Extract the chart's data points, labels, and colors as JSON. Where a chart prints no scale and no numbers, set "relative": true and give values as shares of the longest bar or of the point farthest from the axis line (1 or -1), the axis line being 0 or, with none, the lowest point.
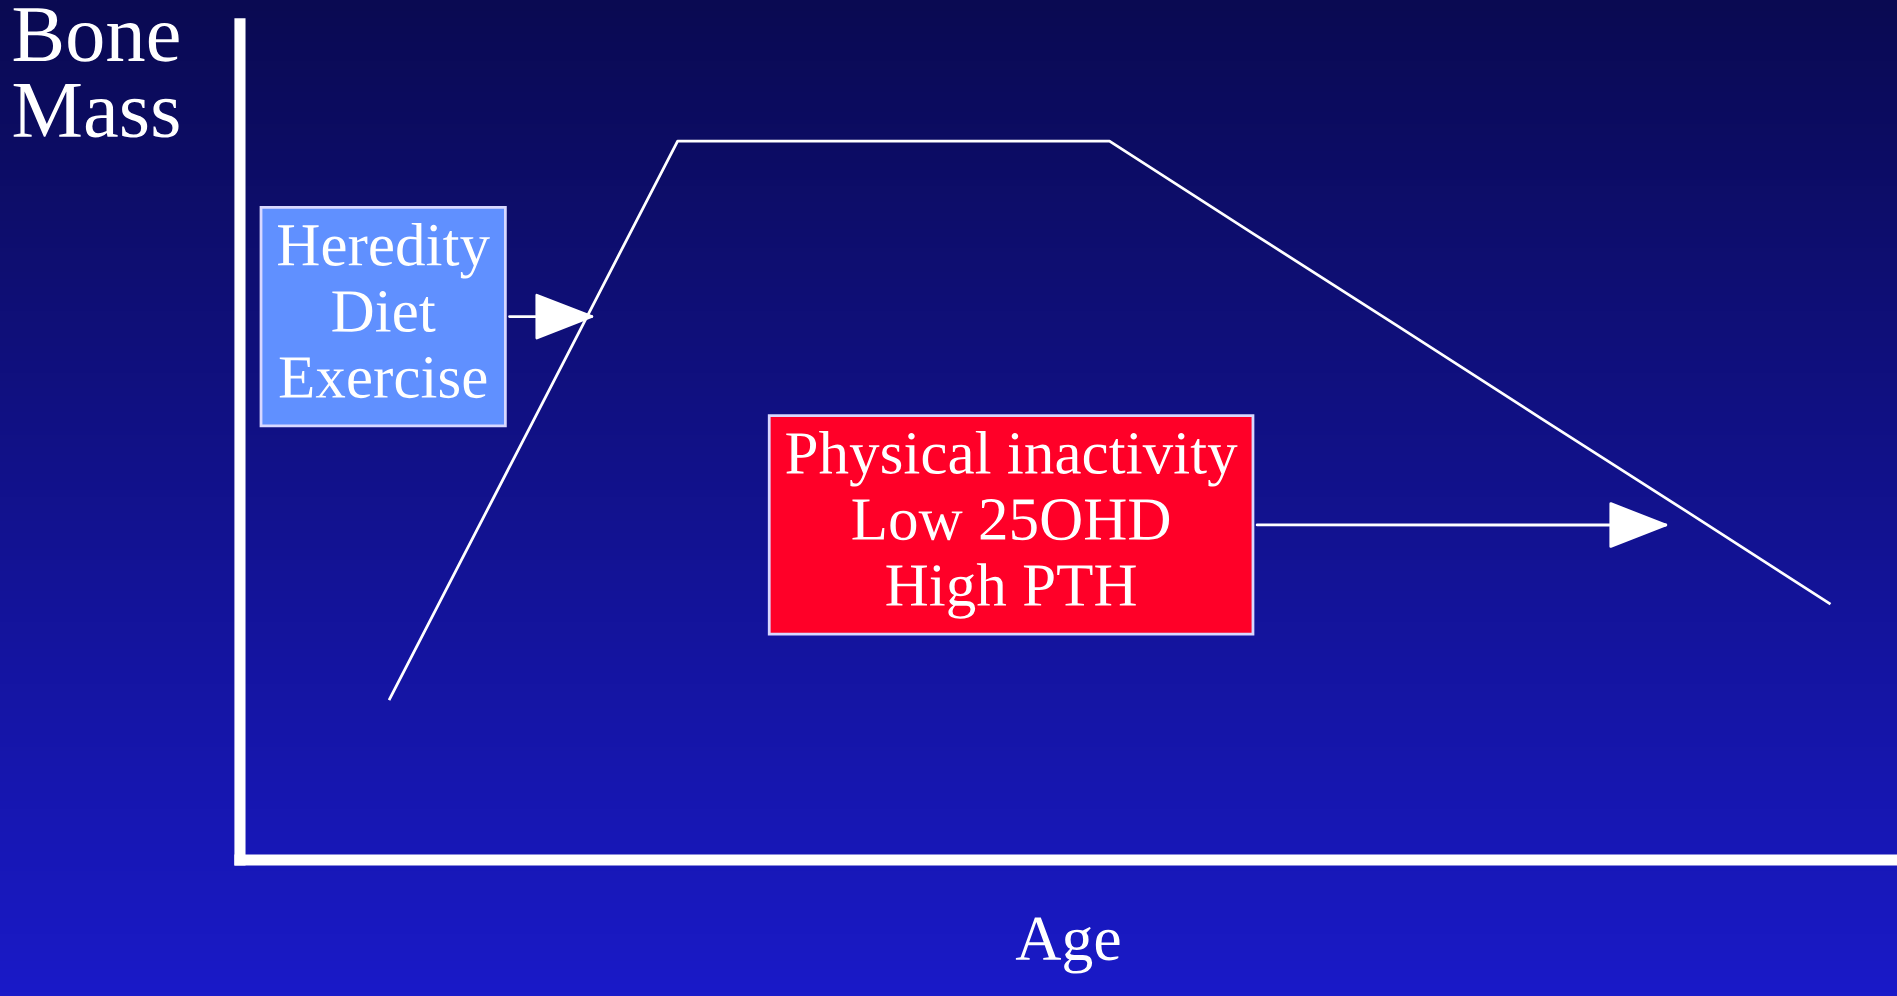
{
  "chart_data": {
    "type": "line",
    "relative": true,
    "xlabel": "Age",
    "ylabel": "Bone Mass",
    "categories": [
      null,
      null,
      null,
      null,
      null,
      null,
      null,
      null,
      null,
      null,
      null,
      null
    ],
    "series": [
      {
        "color": "#ffffff",
        "values": [
          null,
          0.224,
          0.612,
          1,
          1,
          1,
          1,
          0.871,
          0.743,
          0.614,
          0.486,
          0.357
        ]
      }
    ],
    "annotations": [
      "Heredity\nDiet\nExercise",
      "Physical inactivity\nLow 25OHD\nHigh PTH"
    ],
    "legend": false,
    "marker": "none",
    "line_style": "solid"
  }
}
